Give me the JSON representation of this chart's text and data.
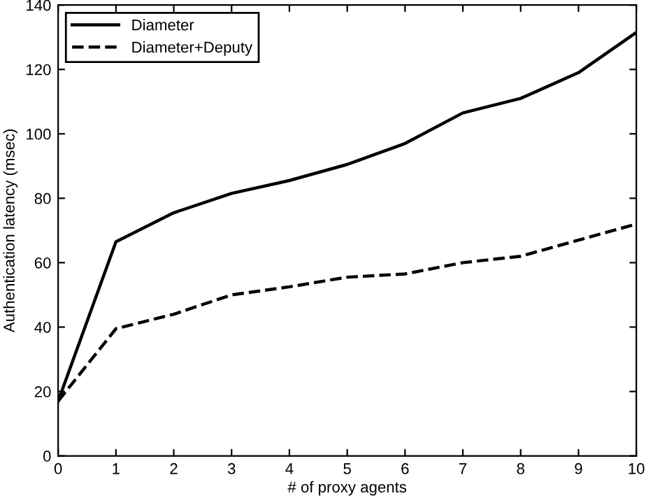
{
  "chart_data": {
    "type": "line",
    "xlabel": "# of proxy agents",
    "ylabel": "Authentication latency (msec)",
    "x": [
      0,
      1,
      2,
      3,
      4,
      5,
      6,
      7,
      8,
      9,
      10
    ],
    "series": [
      {
        "name": "Diameter",
        "color": "#000000",
        "line_style": "solid",
        "values": [
          17,
          66.5,
          75.5,
          81.5,
          85.5,
          90.5,
          97,
          106.5,
          111,
          119,
          131.5
        ]
      },
      {
        "name": "Diameter+Deputy",
        "color": "#000000",
        "line_style": "dashed",
        "values": [
          17,
          39.5,
          44,
          50,
          52.5,
          55.5,
          56.5,
          60,
          62,
          67,
          72
        ]
      }
    ],
    "xlim": [
      0,
      10
    ],
    "xticks": [
      0,
      1,
      2,
      3,
      4,
      5,
      6,
      7,
      8,
      9,
      10
    ],
    "ylim": [
      0,
      140
    ],
    "yticks": [
      0,
      20,
      40,
      60,
      80,
      100,
      120,
      140
    ],
    "grid": false,
    "legend": "top left",
    "marker": "none"
  }
}
